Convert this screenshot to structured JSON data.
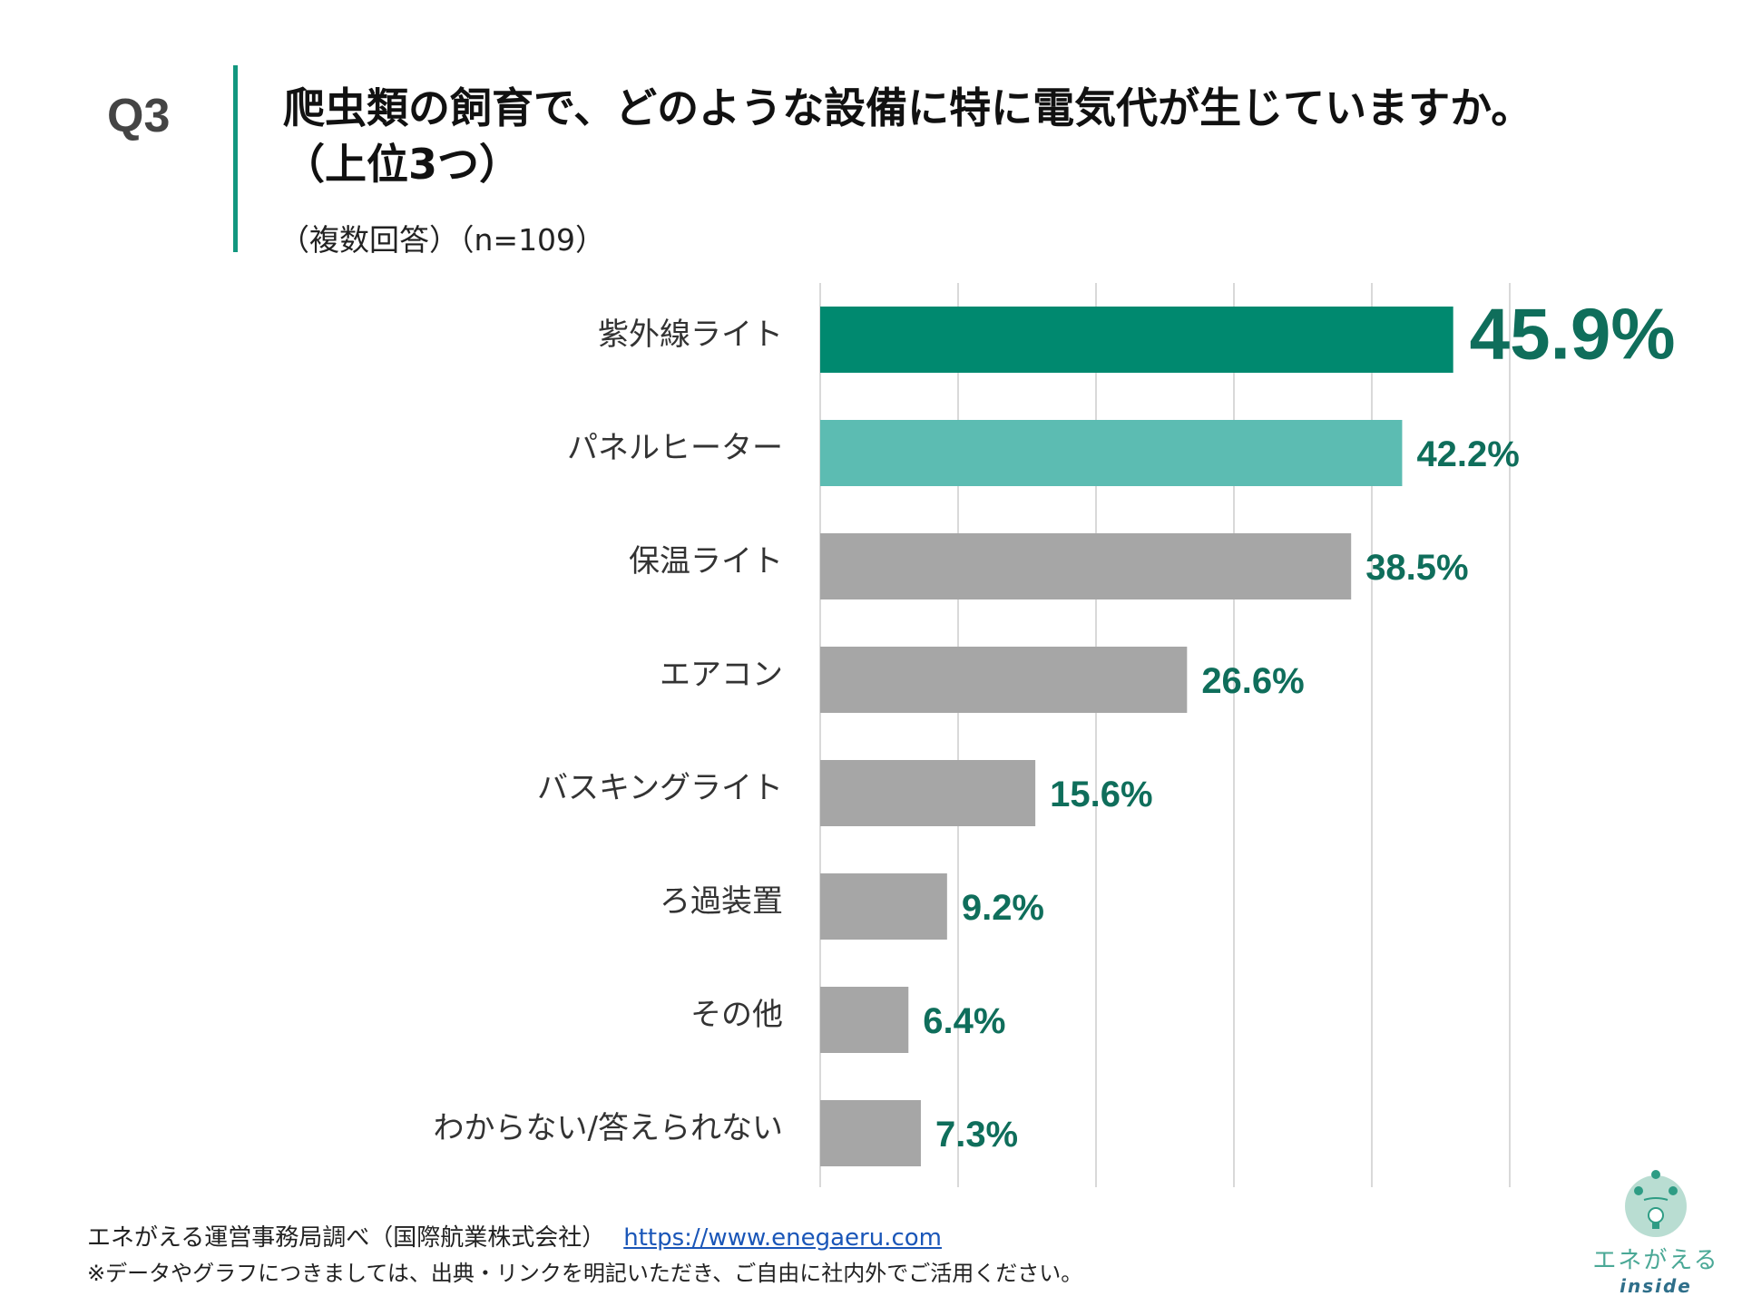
{
  "question_number": "Q3",
  "title_line1": "爬虫類の飼育で、どのような設備に特に電気代が生じていますか。",
  "title_line2": "（上位3つ）",
  "subtitle": "（複数回答）（n=109）",
  "chart_data": {
    "type": "bar",
    "orientation": "horizontal",
    "categories": [
      "紫外線ライト",
      "パネルヒーター",
      "保温ライト",
      "エアコン",
      "バスキングライト",
      "ろ過装置",
      "その他",
      "わからない/答えられない"
    ],
    "values": [
      45.9,
      42.2,
      38.5,
      26.6,
      15.6,
      9.2,
      6.4,
      7.3
    ],
    "value_labels": [
      "45.9%",
      "42.2%",
      "38.5%",
      "26.6%",
      "15.6%",
      "9.2%",
      "6.4%",
      "7.3%"
    ],
    "xlim": [
      0,
      50
    ],
    "grid": true,
    "colors": [
      "#00896f",
      "#5cbcb2",
      "#a6a6a6",
      "#a6a6a6",
      "#a6a6a6",
      "#a6a6a6",
      "#a6a6a6",
      "#a6a6a6"
    ],
    "label_color": "#0f6e5b"
  },
  "footer": {
    "source": "エネがえる運営事務局調べ（国際航業株式会社）",
    "link": "https://www.enegaeru.com",
    "note": "※データやグラフにつきましては、出典・リンクを明記いただき、ご自由に社内外でご活用ください。"
  },
  "logo": {
    "text": "エネがえる",
    "sub": "inside"
  }
}
